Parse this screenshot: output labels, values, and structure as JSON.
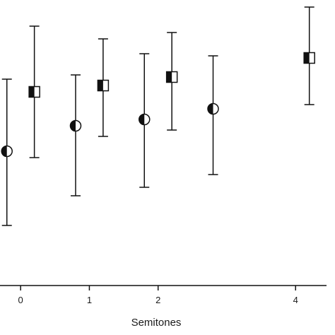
{
  "chart_data": {
    "type": "scatter",
    "title": "",
    "xlabel": "Semitones",
    "ylabel": "",
    "x_ticks": [
      0,
      1,
      2,
      4
    ],
    "x_tick_labels": [
      "0",
      "1",
      "2",
      "4"
    ],
    "xlim": [
      -0.3,
      4.45
    ],
    "ylim": [
      0,
      1
    ],
    "y_tick_labels_visible": false,
    "grid": false,
    "legend": "none",
    "error_bars": true,
    "series": [
      {
        "marker": "half-filled-circle",
        "points": [
          {
            "x": -0.2,
            "y": 0.52,
            "low": 0.17,
            "high": 0.86
          },
          {
            "x": 0.8,
            "y": 0.64,
            "low": 0.31,
            "high": 0.88
          },
          {
            "x": 1.8,
            "y": 0.67,
            "low": 0.35,
            "high": 0.98
          },
          {
            "x": 2.8,
            "y": 0.72,
            "low": 0.41,
            "high": 0.97
          }
        ]
      },
      {
        "marker": "half-filled-square",
        "points": [
          {
            "x": 0.2,
            "y": 0.8,
            "low": 0.49,
            "high": 1.11
          },
          {
            "x": 1.2,
            "y": 0.83,
            "low": 0.59,
            "high": 1.05
          },
          {
            "x": 2.2,
            "y": 0.87,
            "low": 0.62,
            "high": 1.08
          },
          {
            "x": 4.2,
            "y": 0.96,
            "low": 0.74,
            "high": 1.2
          }
        ]
      }
    ],
    "colors": {
      "ink": "#111111",
      "background": "#ffffff"
    }
  }
}
